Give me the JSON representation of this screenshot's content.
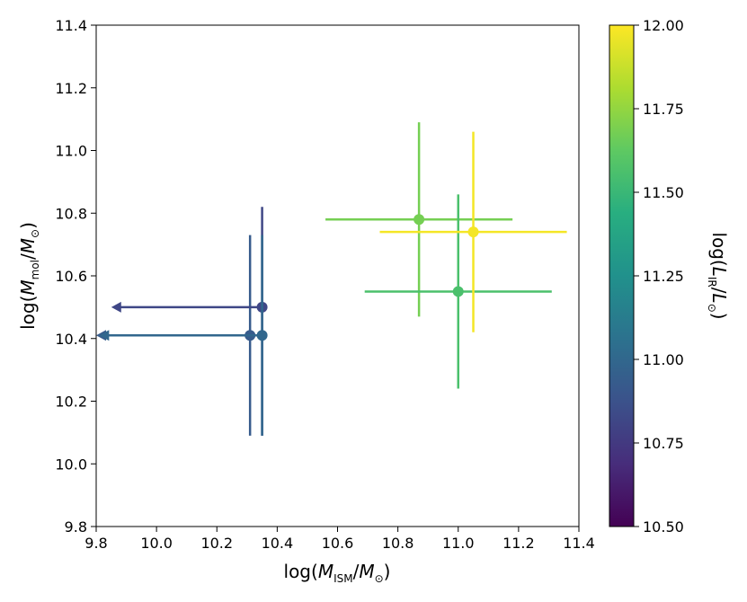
{
  "chart_data": {
    "type": "scatter",
    "xlabel": "log(M_ISM/M_⊙)",
    "ylabel": "log(M_mol/M_⊙)",
    "xlim": [
      9.8,
      11.4
    ],
    "ylim": [
      9.8,
      11.4
    ],
    "x_ticks": [
      "9.8",
      "10.0",
      "10.2",
      "10.4",
      "10.6",
      "10.8",
      "11.0",
      "11.2",
      "11.4"
    ],
    "y_ticks": [
      "9.8",
      "10.0",
      "10.2",
      "10.4",
      "10.6",
      "10.8",
      "11.0",
      "11.2",
      "11.4"
    ],
    "colorbar": {
      "label": "log(L_IR/L_⊙)",
      "range": [
        10.5,
        12.0
      ],
      "ticks": [
        "10.50",
        "10.75",
        "11.00",
        "11.25",
        "11.50",
        "11.75",
        "12.00"
      ],
      "colormap": "viridis"
    },
    "points": [
      {
        "x": 10.31,
        "y": 10.41,
        "c": 10.93,
        "yerr_low": 0.32,
        "yerr_high": 0.32,
        "x_upper_limit": true,
        "arrow_to": 9.8
      },
      {
        "x": 10.35,
        "y": 10.5,
        "c": 10.82,
        "yerr_low": 0.41,
        "yerr_high": 0.32,
        "x_upper_limit": true,
        "arrow_to": 9.85
      },
      {
        "x": 10.35,
        "y": 10.41,
        "c": 11.0,
        "yerr_low": 0.32,
        "yerr_high": 0.32,
        "x_upper_limit": true,
        "arrow_to": 9.81
      },
      {
        "x": 10.87,
        "y": 10.78,
        "c": 11.68,
        "xerr_low": 0.31,
        "xerr_high": 0.31,
        "yerr_low": 0.31,
        "yerr_high": 0.31
      },
      {
        "x": 11.0,
        "y": 10.55,
        "c": 11.56,
        "xerr_low": 0.31,
        "xerr_high": 0.31,
        "yerr_low": 0.31,
        "yerr_high": 0.31
      },
      {
        "x": 11.05,
        "y": 10.74,
        "c": 11.98,
        "xerr_low": 0.31,
        "xerr_high": 0.31,
        "yerr_low": 0.32,
        "yerr_high": 0.32
      }
    ]
  }
}
